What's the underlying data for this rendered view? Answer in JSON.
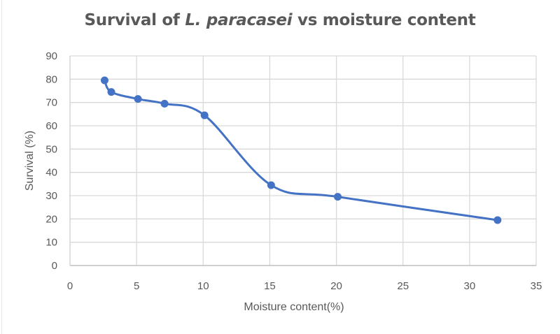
{
  "chart": {
    "title_prefix": "Survival of ",
    "title_italic": "L. paracasei",
    "title_suffix": " vs moisture content",
    "xlabel": "Moisture content(%)",
    "ylabel": "Survival (%)",
    "xticks": [
      "0",
      "5",
      "10",
      "15",
      "20",
      "25",
      "30",
      "35"
    ],
    "yticks": [
      "0",
      "10",
      "20",
      "30",
      "40",
      "50",
      "60",
      "70",
      "80",
      "90"
    ],
    "series_color": "#4472C4",
    "grid_color": "#d9d9d9"
  },
  "chart_data": {
    "type": "line",
    "title": "Survival of L. paracasei vs moisture content",
    "xlabel": "Moisture content(%)",
    "ylabel": "Survival (%)",
    "xlim": [
      0,
      35
    ],
    "ylim": [
      0,
      90
    ],
    "grid": true,
    "legend": null,
    "smoothed": true,
    "series": [
      {
        "name": "Survival",
        "x": [
          2.6,
          3.1,
          5.1,
          7.1,
          10.1,
          15.1,
          20.1,
          32.1
        ],
        "y": [
          79.5,
          74.5,
          71.5,
          69.5,
          64.5,
          34.5,
          29.5,
          19.5
        ]
      }
    ]
  }
}
